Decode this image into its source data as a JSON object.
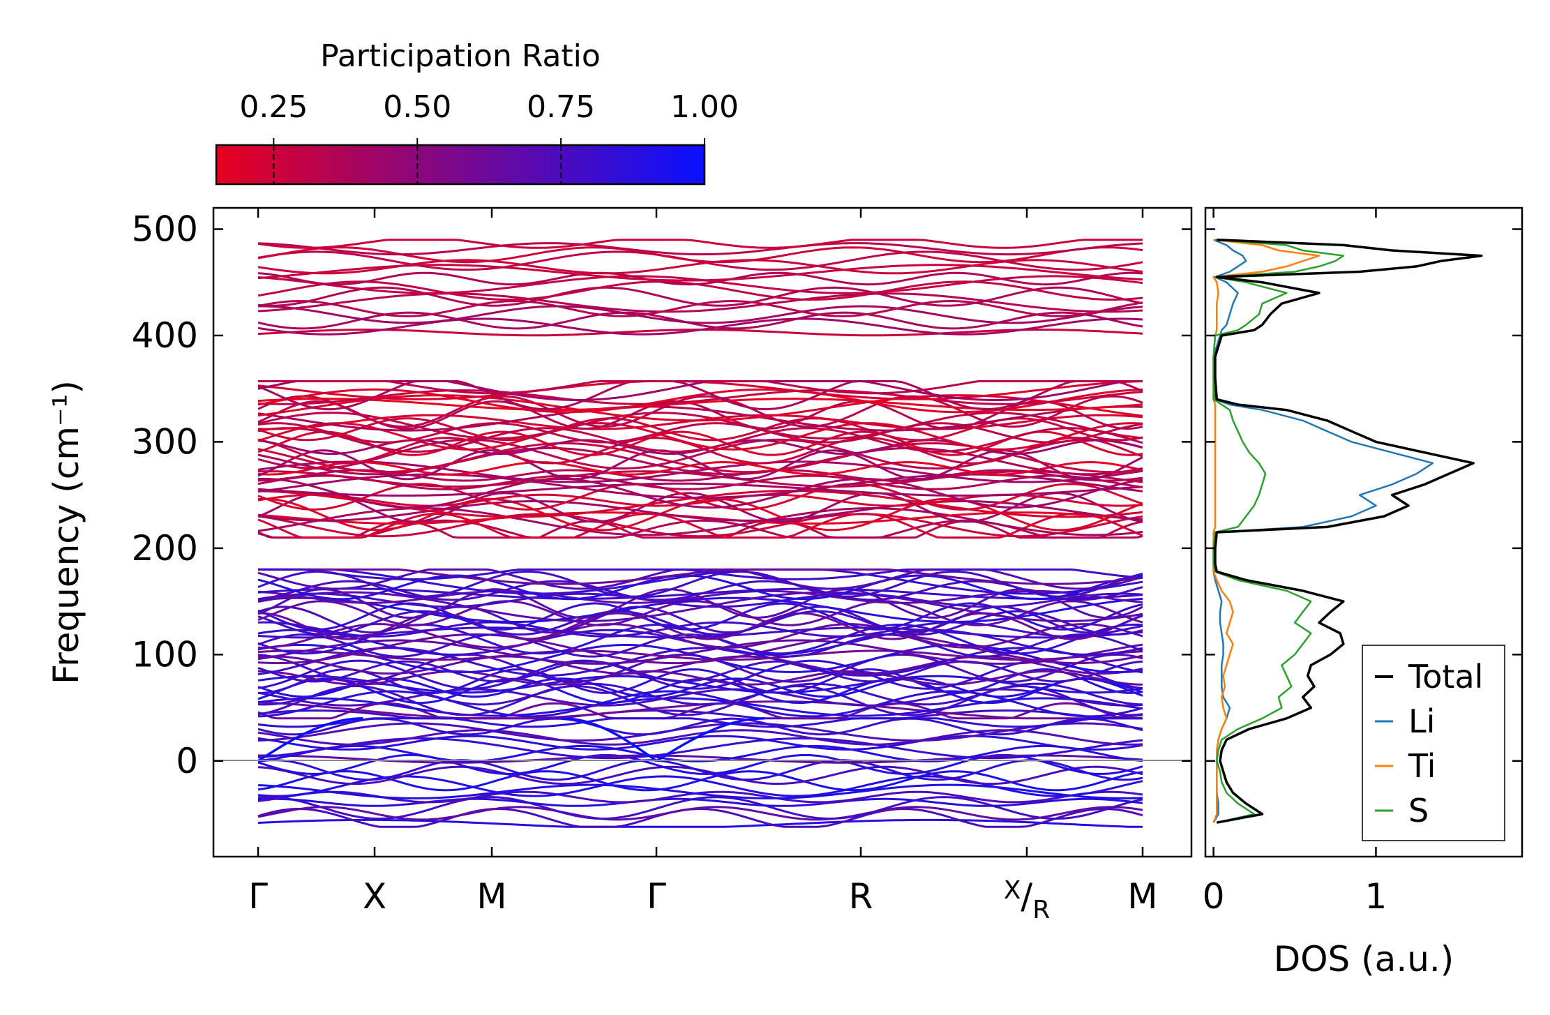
{
  "colorbar": {
    "title": "Participation Ratio",
    "range": [
      0.15,
      1.0
    ],
    "ticks": [
      0.25,
      0.5,
      0.75,
      1.0
    ],
    "tick_labels": [
      "0.25",
      "0.50",
      "0.75",
      "1.00"
    ],
    "colors": {
      "low": "#e8001e",
      "high": "#0a10ff"
    }
  },
  "chart_data": [
    {
      "type": "line",
      "title": "",
      "xlabel": "",
      "ylabel": "Frequency (cm⁻¹)",
      "ylim": [
        -90,
        520
      ],
      "yticks": [
        0,
        100,
        200,
        300,
        400,
        500
      ],
      "ytick_labels": [
        "0",
        "100",
        "200",
        "300",
        "400",
        "500"
      ],
      "xticks": [
        0,
        1,
        2,
        3.4,
        5.1,
        6.5,
        7.5
      ],
      "xtick_labels": [
        "Γ",
        "X",
        "M",
        "Γ",
        "R",
        "X/R",
        "M"
      ],
      "xtick_label_x": {
        "main": "X",
        "sub": "R"
      },
      "segment_breaks": [
        1,
        2,
        3.4,
        5.1,
        6.5
      ],
      "zero_line": 0,
      "bands": {
        "top_group": {
          "range": [
            400,
            490
          ],
          "participation": 0.35
        },
        "upper_group": {
          "range": [
            210,
            357
          ],
          "participation": 0.3
        },
        "lower_group": {
          "range": [
            40,
            180
          ],
          "participation": 0.75
        },
        "imaginary_group": {
          "range": [
            -62,
            40
          ],
          "participation": 0.8
        }
      }
    },
    {
      "type": "line",
      "xlabel": "DOS (a.u.)",
      "xlim": [
        -0.05,
        1.9
      ],
      "xticks": [
        0,
        1
      ],
      "xtick_labels": [
        "0",
        "1"
      ],
      "series": [
        {
          "name": "Total",
          "color": "#000000",
          "y": [
            -58,
            -50,
            -40,
            -30,
            -20,
            -10,
            0,
            10,
            20,
            30,
            40,
            50,
            60,
            70,
            80,
            90,
            100,
            110,
            120,
            130,
            140,
            150,
            160,
            170,
            178,
            185,
            200,
            215,
            220,
            230,
            240,
            250,
            260,
            270,
            280,
            290,
            300,
            310,
            320,
            330,
            335,
            340,
            360,
            380,
            400,
            405,
            410,
            420,
            430,
            440,
            450,
            455,
            460,
            465,
            470,
            475,
            480,
            485,
            490
          ],
          "values": [
            0.02,
            0.3,
            0.2,
            0.12,
            0.08,
            0.06,
            0.04,
            0.05,
            0.08,
            0.22,
            0.45,
            0.6,
            0.55,
            0.62,
            0.58,
            0.6,
            0.72,
            0.8,
            0.78,
            0.65,
            0.72,
            0.8,
            0.55,
            0.2,
            0.02,
            0.01,
            0.01,
            0.02,
            0.7,
            1.05,
            1.2,
            1.1,
            1.3,
            1.45,
            1.6,
            1.3,
            1.0,
            0.85,
            0.7,
            0.45,
            0.15,
            0.02,
            0.01,
            0.01,
            0.05,
            0.25,
            0.3,
            0.35,
            0.42,
            0.65,
            0.3,
            0.02,
            0.9,
            1.25,
            1.4,
            1.65,
            1.1,
            0.8,
            0.02
          ]
        },
        {
          "name": "Li",
          "color": "#1f77b4",
          "y": [
            -58,
            -50,
            -40,
            -30,
            -20,
            -10,
            0,
            10,
            20,
            30,
            40,
            50,
            60,
            70,
            80,
            90,
            100,
            110,
            120,
            130,
            140,
            150,
            160,
            170,
            178,
            185,
            200,
            215,
            220,
            230,
            240,
            250,
            260,
            270,
            280,
            290,
            300,
            310,
            320,
            330,
            335,
            340,
            360,
            380,
            400,
            405,
            410,
            420,
            430,
            440,
            450,
            455,
            460,
            465,
            470,
            475,
            480,
            485,
            490
          ],
          "values": [
            0.0,
            0.03,
            0.03,
            0.02,
            0.02,
            0.02,
            0.02,
            0.02,
            0.03,
            0.05,
            0.08,
            0.1,
            0.06,
            0.05,
            0.05,
            0.05,
            0.06,
            0.06,
            0.05,
            0.04,
            0.04,
            0.05,
            0.03,
            0.01,
            0.0,
            0.0,
            0.0,
            0.01,
            0.55,
            0.85,
            1.0,
            0.9,
            1.1,
            1.25,
            1.35,
            1.1,
            0.85,
            0.7,
            0.55,
            0.3,
            0.1,
            0.01,
            0.0,
            0.0,
            0.04,
            0.05,
            0.08,
            0.1,
            0.12,
            0.15,
            0.08,
            0.01,
            0.1,
            0.15,
            0.2,
            0.18,
            0.12,
            0.08,
            0.0
          ]
        },
        {
          "name": "Ti",
          "color": "#ff7f0e",
          "y": [
            -58,
            -50,
            -40,
            -30,
            -20,
            -10,
            0,
            10,
            20,
            30,
            40,
            50,
            60,
            70,
            80,
            90,
            100,
            110,
            120,
            130,
            140,
            150,
            160,
            170,
            178,
            185,
            200,
            215,
            220,
            230,
            240,
            250,
            260,
            270,
            280,
            290,
            300,
            310,
            320,
            330,
            335,
            340,
            360,
            380,
            400,
            405,
            410,
            420,
            430,
            440,
            450,
            455,
            460,
            465,
            470,
            475,
            480,
            485,
            490
          ],
          "values": [
            0.0,
            0.02,
            0.02,
            0.02,
            0.02,
            0.02,
            0.02,
            0.02,
            0.03,
            0.05,
            0.08,
            0.06,
            0.05,
            0.07,
            0.06,
            0.08,
            0.1,
            0.12,
            0.08,
            0.1,
            0.12,
            0.1,
            0.05,
            0.02,
            0.0,
            0.0,
            0.0,
            0.0,
            0.01,
            0.01,
            0.01,
            0.01,
            0.01,
            0.01,
            0.01,
            0.01,
            0.01,
            0.01,
            0.01,
            0.01,
            0.01,
            0.0,
            0.0,
            0.0,
            0.01,
            0.02,
            0.02,
            0.02,
            0.02,
            0.03,
            0.02,
            0.0,
            0.3,
            0.45,
            0.55,
            0.65,
            0.4,
            0.3,
            0.0
          ]
        },
        {
          "name": "S",
          "color": "#2ca02c",
          "y": [
            -58,
            -50,
            -40,
            -30,
            -20,
            -10,
            0,
            10,
            20,
            30,
            40,
            50,
            60,
            70,
            80,
            90,
            100,
            110,
            120,
            130,
            140,
            150,
            160,
            170,
            178,
            185,
            200,
            215,
            220,
            230,
            240,
            250,
            260,
            270,
            280,
            290,
            300,
            310,
            320,
            330,
            335,
            340,
            360,
            380,
            400,
            405,
            410,
            420,
            430,
            440,
            450,
            455,
            460,
            465,
            470,
            475,
            480,
            485,
            490
          ],
          "values": [
            0.02,
            0.25,
            0.15,
            0.08,
            0.05,
            0.04,
            0.02,
            0.03,
            0.05,
            0.15,
            0.3,
            0.42,
            0.4,
            0.48,
            0.45,
            0.42,
            0.5,
            0.55,
            0.6,
            0.5,
            0.55,
            0.6,
            0.45,
            0.15,
            0.01,
            0.0,
            0.0,
            0.01,
            0.15,
            0.2,
            0.25,
            0.28,
            0.3,
            0.32,
            0.28,
            0.22,
            0.18,
            0.15,
            0.12,
            0.1,
            0.05,
            0.0,
            0.0,
            0.0,
            0.01,
            0.15,
            0.2,
            0.28,
            0.3,
            0.45,
            0.2,
            0.01,
            0.5,
            0.65,
            0.75,
            0.8,
            0.55,
            0.45,
            0.01
          ]
        }
      ],
      "legend": {
        "placement": "lower-right",
        "entries": [
          "Total",
          "Li",
          "Ti",
          "S"
        ]
      }
    }
  ]
}
